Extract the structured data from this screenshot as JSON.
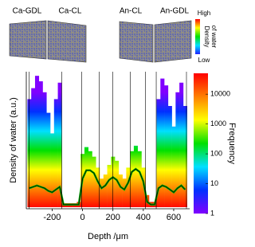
{
  "insets": [
    {
      "label": "Ca-GDL"
    },
    {
      "label": "Ca-CL"
    },
    {
      "label": "An-CL"
    },
    {
      "label": "An-GDL"
    }
  ],
  "inset_legend": {
    "high": "High",
    "title": [
      "Density",
      "of water"
    ],
    "low": "Low"
  },
  "chart_data": {
    "type": "density",
    "xlabel": "Depth /μm",
    "ylabel": "Density of water (a.u.)",
    "xlim": [
      -370,
      705
    ],
    "xticks": [
      -200,
      0,
      200,
      400,
      600
    ],
    "ylim": [
      0,
      1
    ],
    "boundaries": [
      -352,
      -137,
      -5,
      110,
      200,
      315,
      415,
      485,
      684
    ],
    "x": [
      -350,
      -325,
      -300,
      -275,
      -250,
      -225,
      -200,
      -175,
      -150,
      -125,
      -100,
      -75,
      -50,
      -25,
      0,
      25,
      50,
      75,
      100,
      125,
      150,
      175,
      200,
      225,
      250,
      275,
      300,
      325,
      350,
      375,
      400,
      425,
      450,
      475,
      500,
      525,
      550,
      575,
      600,
      625,
      650,
      675
    ],
    "upper": [
      0.8,
      0.88,
      0.97,
      0.93,
      0.85,
      0.7,
      0.55,
      0.8,
      0.92,
      0.04,
      0.04,
      0.04,
      0.04,
      0.05,
      0.4,
      0.45,
      0.42,
      0.38,
      0.3,
      0.22,
      0.25,
      0.32,
      0.38,
      0.35,
      0.25,
      0.22,
      0.3,
      0.42,
      0.46,
      0.42,
      0.3,
      0.1,
      0.05,
      0.05,
      0.8,
      0.95,
      0.9,
      0.75,
      0.6,
      0.85,
      0.92,
      0.75
    ],
    "mean": [
      0.15,
      0.16,
      0.17,
      0.16,
      0.15,
      0.13,
      0.12,
      0.14,
      0.16,
      0.03,
      0.03,
      0.03,
      0.03,
      0.03,
      0.22,
      0.28,
      0.28,
      0.26,
      0.2,
      0.15,
      0.17,
      0.21,
      0.23,
      0.21,
      0.16,
      0.14,
      0.19,
      0.27,
      0.29,
      0.27,
      0.2,
      0.05,
      0.03,
      0.03,
      0.15,
      0.17,
      0.16,
      0.14,
      0.12,
      0.15,
      0.17,
      0.14
    ],
    "colorbar": {
      "label": "Frequency",
      "lim": [
        1,
        50000
      ],
      "ticks": [
        1,
        10,
        100,
        1000,
        10000
      ],
      "log": true,
      "colormap": [
        "#ff0000",
        "#ff8000",
        "#ffff00",
        "#00e000",
        "#00e0ff",
        "#0030ff",
        "#8000ff"
      ]
    }
  }
}
